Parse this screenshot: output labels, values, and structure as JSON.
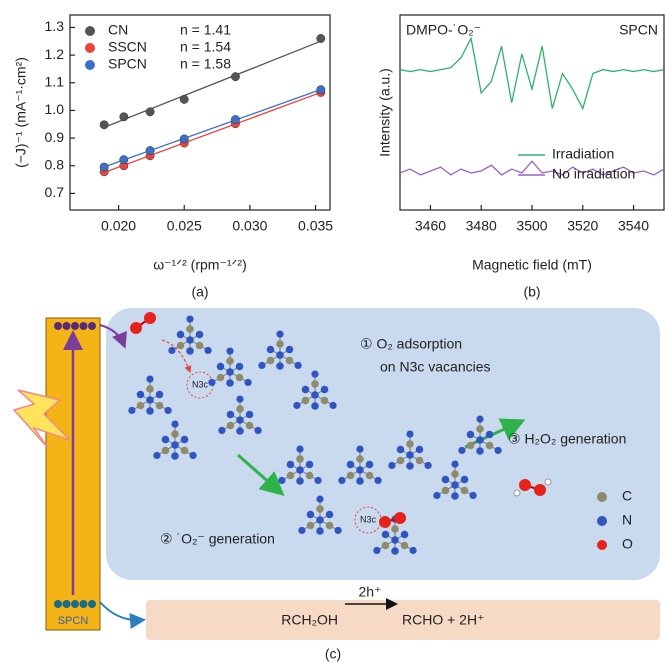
{
  "chart_data": [
    {
      "type": "scatter",
      "panel_label": "(a)",
      "xlabel": "ω⁻¹ᐟ² (rpm⁻¹ᐟ²)",
      "ylabel": "(−J)⁻¹ (mA⁻¹·cm²)",
      "xlim": [
        0.0163,
        0.0361
      ],
      "ylim": [
        0.64,
        1.345
      ],
      "xticks": [
        {
          "value": 0.02,
          "label": "0.020"
        },
        {
          "value": 0.025,
          "label": "0.025"
        },
        {
          "value": 0.03,
          "label": "0.030"
        },
        {
          "value": 0.035,
          "label": "0.035"
        }
      ],
      "yticks": [
        0.7,
        0.8,
        0.9,
        {
          "value": 1.0,
          "label": "1.0"
        },
        1.1,
        1.2,
        1.3
      ],
      "fit_lines": true,
      "x": [
        0.0189,
        0.0204,
        0.0224,
        0.025,
        0.0289,
        0.0354
      ],
      "series": [
        {
          "name": "CN",
          "note": "n = 1.41",
          "color": "#555555",
          "text_color": "#111111",
          "values": [
            0.948,
            0.977,
            0.995,
            1.04,
            1.122,
            1.26
          ]
        },
        {
          "name": "SSCN",
          "note": "n = 1.54",
          "color": "#e8463a",
          "text_color": "#e8463a",
          "values": [
            0.778,
            0.8,
            0.836,
            0.882,
            0.952,
            1.065
          ]
        },
        {
          "name": "SPCN",
          "note": "n = 1.58",
          "color": "#3b6fc9",
          "text_color": "#3b6fc9",
          "values": [
            0.795,
            0.822,
            0.855,
            0.897,
            0.967,
            1.075
          ]
        }
      ]
    },
    {
      "type": "line",
      "panel_label": "(b)",
      "xlabel": "Magnetic field (mT)",
      "ylabel": "Intensity (a.u.)",
      "annotations": [
        {
          "text": "DMPO-˙O₂⁻",
          "color": "#e8463a"
        },
        {
          "text": "SPCN",
          "color": "#3b5fb0"
        }
      ],
      "xlim": [
        3448,
        3552
      ],
      "ylim": [
        0,
        1
      ],
      "xticks": [
        3460,
        3480,
        3500,
        3520,
        3540
      ],
      "x": [
        3448,
        3452,
        3456,
        3460,
        3464,
        3468,
        3472,
        3476,
        3480,
        3484,
        3488,
        3492,
        3496,
        3500,
        3504,
        3508,
        3512,
        3516,
        3520,
        3524,
        3528,
        3532,
        3536,
        3540,
        3544,
        3548,
        3552
      ],
      "series": [
        {
          "name": "Irradiation",
          "color": "#2db36a",
          "values": [
            0.72,
            0.71,
            0.72,
            0.71,
            0.72,
            0.73,
            0.78,
            0.88,
            0.6,
            0.66,
            0.84,
            0.55,
            0.8,
            0.62,
            0.84,
            0.52,
            0.7,
            0.62,
            0.52,
            0.7,
            0.72,
            0.71,
            0.72,
            0.71,
            0.72,
            0.71,
            0.72
          ]
        },
        {
          "name": "No irradiation",
          "color": "#9b62c0",
          "values": [
            0.19,
            0.21,
            0.18,
            0.2,
            0.22,
            0.18,
            0.21,
            0.19,
            0.2,
            0.23,
            0.18,
            0.21,
            0.19,
            0.25,
            0.19,
            0.2,
            0.18,
            0.22,
            0.19,
            0.21,
            0.18,
            0.2,
            0.22,
            0.19,
            0.2,
            0.18,
            0.21
          ]
        }
      ]
    }
  ],
  "diagram": {
    "panel_label": "(c)",
    "material": "SPCN",
    "step1_line1": "① O₂ adsorption",
    "step1_line2": "on N3c vacancies",
    "step2": "② ˙O₂⁻ generation",
    "step3": "③ H₂O₂ generation",
    "site_label_1": "N3c",
    "site_label_2": "N3c",
    "legend": [
      "C",
      "N",
      "O"
    ],
    "reactant": "RCH₂OH",
    "arrow_label": "2h⁺",
    "product": "RCHO + 2H⁺"
  }
}
